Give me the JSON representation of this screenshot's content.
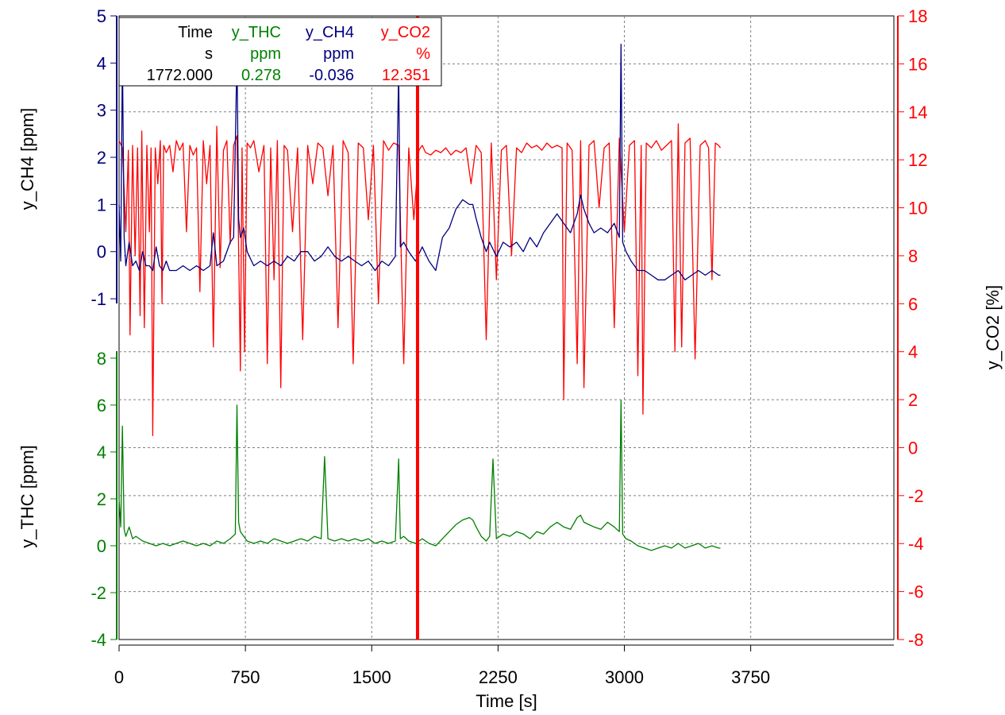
{
  "colors": {
    "ch4": "#000080",
    "thc": "#008000",
    "co2": "#ff0000",
    "grid": "#808080",
    "axis": "#000000",
    "cursor": "#ff0000"
  },
  "chart_data": {
    "type": "line",
    "x_axis": {
      "label": "Time [s]",
      "range": [
        0,
        4600
      ],
      "ticks": [
        0,
        750,
        1500,
        2250,
        3000,
        3750
      ]
    },
    "y_axes": {
      "ch4": {
        "label": "y_CH4 [ppm]",
        "range": [
          -1.1,
          5
        ],
        "ticks": [
          -1,
          0,
          1,
          2,
          3,
          4,
          5
        ]
      },
      "thc": {
        "label": "y_THC [ppm]",
        "range": [
          -4,
          8.3
        ],
        "ticks": [
          -4,
          -2,
          0,
          2,
          4,
          6,
          8
        ]
      },
      "co2": {
        "label": "y_CO2 [%]",
        "range": [
          -8,
          18
        ],
        "ticks": [
          -8,
          -6,
          -4,
          -2,
          0,
          2,
          4,
          6,
          8,
          10,
          12,
          14,
          16,
          18
        ]
      }
    },
    "grid": true,
    "cursor": {
      "x": 1772
    },
    "legend": {
      "columns": [
        {
          "name": "Time",
          "unit": "s",
          "value": "1772.000",
          "color_key": "axis"
        },
        {
          "name": "y_THC",
          "unit": "ppm",
          "value": "0.278",
          "color_key": "thc"
        },
        {
          "name": "y_CH4",
          "unit": "ppm",
          "value": "-0.036",
          "color_key": "ch4"
        },
        {
          "name": "y_CO2",
          "unit": "%",
          "value": "12.351",
          "color_key": "co2"
        }
      ]
    },
    "series": [
      {
        "name": "y_CO2",
        "axis": "co2",
        "color_key": "co2",
        "x": [
          0,
          20,
          40,
          55,
          65,
          80,
          95,
          110,
          125,
          135,
          150,
          165,
          180,
          190,
          200,
          215,
          230,
          245,
          255,
          265,
          280,
          300,
          320,
          340,
          360,
          380,
          400,
          420,
          440,
          460,
          480,
          500,
          520,
          540,
          560,
          580,
          600,
          620,
          640,
          660,
          680,
          700,
          720,
          730,
          745,
          760,
          780,
          800,
          830,
          860,
          880,
          900,
          920,
          940,
          960,
          980,
          1000,
          1030,
          1060,
          1090,
          1120,
          1150,
          1180,
          1210,
          1240,
          1270,
          1300,
          1330,
          1360,
          1390,
          1420,
          1450,
          1480,
          1510,
          1540,
          1570,
          1600,
          1630,
          1660,
          1690,
          1720,
          1750,
          1780,
          1800,
          1820,
          1850,
          1880,
          1910,
          1940,
          1970,
          2000,
          2030,
          2060,
          2090,
          2120,
          2150,
          2180,
          2210,
          2240,
          2270,
          2300,
          2330,
          2360,
          2390,
          2420,
          2450,
          2480,
          2510,
          2540,
          2570,
          2600,
          2630,
          2640,
          2660,
          2690,
          2720,
          2740,
          2760,
          2790,
          2820,
          2850,
          2880,
          2910,
          2940,
          2970,
          3000,
          3030,
          3060,
          3080,
          3100,
          3110,
          3130,
          3160,
          3190,
          3220,
          3250,
          3280,
          3300,
          3320,
          3340,
          3360,
          3390,
          3420,
          3450,
          3480,
          3500,
          3520,
          3540,
          3560,
          3570
        ],
        "y": [
          12.8,
          12.5,
          9.0,
          12.4,
          4.7,
          12.6,
          8.0,
          12.5,
          5.5,
          13.2,
          5.0,
          12.6,
          9.0,
          12.5,
          0.5,
          12.5,
          11.0,
          12.8,
          6.0,
          12.6,
          12.3,
          12.6,
          11.5,
          12.8,
          12.4,
          12.7,
          9.0,
          12.6,
          12.2,
          12.5,
          6.5,
          12.8,
          11.0,
          12.6,
          4.2,
          13.4,
          7.5,
          12.4,
          12.8,
          8.5,
          12.6,
          13.0,
          3.2,
          12.5,
          4.0,
          12.7,
          12.5,
          12.8,
          11.5,
          12.6,
          3.5,
          12.5,
          7.0,
          12.8,
          2.5,
          12.6,
          12.4,
          9.0,
          12.5,
          4.5,
          12.6,
          11.0,
          12.7,
          12.5,
          10.5,
          12.6,
          5.0,
          12.8,
          12.3,
          3.5,
          12.7,
          12.5,
          9.5,
          12.6,
          6.0,
          12.8,
          12.4,
          12.7,
          12.6,
          3.5,
          12.5,
          9.5,
          12.4,
          12.6,
          12.3,
          12.2,
          12.4,
          12.3,
          12.5,
          12.2,
          12.4,
          12.3,
          12.5,
          11.0,
          12.6,
          12.3,
          4.5,
          12.7,
          7.0,
          12.4,
          12.6,
          8.0,
          12.5,
          12.3,
          12.7,
          12.5,
          12.6,
          12.4,
          12.7,
          12.5,
          12.6,
          12.5,
          2.0,
          12.7,
          12.4,
          3.5,
          12.8,
          2.5,
          12.6,
          12.8,
          10.0,
          12.5,
          12.7,
          5.0,
          12.9,
          9.0,
          12.6,
          12.8,
          3.0,
          12.6,
          1.4,
          12.7,
          12.5,
          12.8,
          12.4,
          12.6,
          12.8,
          4.0,
          13.5,
          4.2,
          12.7,
          12.9,
          3.7,
          12.6,
          12.8,
          12.5,
          7.0,
          12.7,
          12.6,
          12.5
        ]
      },
      {
        "name": "y_CH4",
        "axis": "ch4",
        "color_key": "ch4",
        "x": [
          0,
          10,
          20,
          30,
          40,
          60,
          80,
          100,
          120,
          140,
          160,
          180,
          200,
          220,
          240,
          260,
          280,
          300,
          340,
          380,
          420,
          460,
          500,
          540,
          560,
          580,
          620,
          660,
          680,
          700,
          710,
          720,
          740,
          760,
          800,
          840,
          880,
          920,
          960,
          1000,
          1040,
          1080,
          1120,
          1160,
          1200,
          1240,
          1280,
          1320,
          1360,
          1400,
          1440,
          1480,
          1520,
          1560,
          1600,
          1640,
          1660,
          1670,
          1690,
          1720,
          1760,
          1800,
          1840,
          1880,
          1920,
          1960,
          2000,
          2040,
          2080,
          2100,
          2120,
          2150,
          2180,
          2200,
          2240,
          2280,
          2320,
          2360,
          2400,
          2440,
          2480,
          2520,
          2560,
          2600,
          2640,
          2680,
          2720,
          2740,
          2760,
          2790,
          2820,
          2860,
          2900,
          2940,
          2970,
          2980,
          2990,
          3010,
          3040,
          3080,
          3120,
          3160,
          3200,
          3240,
          3280,
          3320,
          3360,
          3400,
          3440,
          3480,
          3520,
          3560,
          3570
        ],
        "y": [
          1.0,
          -0.2,
          4.2,
          0.3,
          -0.3,
          0.2,
          -0.3,
          -0.2,
          -0.4,
          0.0,
          -0.3,
          -0.3,
          -0.4,
          0.1,
          -0.3,
          -0.4,
          -0.2,
          -0.4,
          -0.4,
          -0.3,
          -0.4,
          -0.3,
          -0.4,
          -0.3,
          0.4,
          -0.3,
          -0.2,
          0.2,
          0.3,
          4.2,
          0.7,
          0.3,
          0.5,
          0.0,
          -0.3,
          -0.2,
          -0.3,
          -0.2,
          -0.3,
          -0.1,
          -0.2,
          0.0,
          0.0,
          -0.2,
          -0.1,
          0.1,
          -0.1,
          -0.2,
          -0.1,
          -0.2,
          -0.3,
          -0.2,
          -0.4,
          -0.2,
          -0.3,
          -0.1,
          3.8,
          0.1,
          0.2,
          0.0,
          -0.2,
          0.1,
          -0.2,
          -0.4,
          0.3,
          0.5,
          0.9,
          1.1,
          1.0,
          1.0,
          0.7,
          0.3,
          0.0,
          0.2,
          -0.1,
          0.2,
          0.1,
          0.2,
          0.0,
          0.3,
          0.1,
          0.4,
          0.6,
          0.8,
          0.6,
          0.4,
          0.8,
          1.2,
          0.9,
          0.6,
          0.4,
          0.5,
          0.4,
          0.6,
          0.3,
          4.4,
          0.2,
          0.0,
          -0.2,
          -0.4,
          -0.4,
          -0.5,
          -0.6,
          -0.6,
          -0.5,
          -0.4,
          -0.6,
          -0.5,
          -0.4,
          -0.5,
          -0.4,
          -0.5,
          -0.5
        ]
      },
      {
        "name": "y_THC",
        "axis": "thc",
        "color_key": "thc",
        "x": [
          0,
          10,
          20,
          30,
          40,
          60,
          80,
          100,
          140,
          180,
          220,
          260,
          300,
          340,
          380,
          420,
          460,
          500,
          540,
          580,
          620,
          660,
          690,
          700,
          710,
          720,
          740,
          760,
          800,
          840,
          880,
          920,
          960,
          1000,
          1040,
          1080,
          1120,
          1160,
          1200,
          1220,
          1240,
          1280,
          1320,
          1360,
          1400,
          1440,
          1480,
          1520,
          1560,
          1600,
          1640,
          1660,
          1670,
          1690,
          1720,
          1760,
          1800,
          1840,
          1880,
          1920,
          1960,
          2000,
          2040,
          2080,
          2100,
          2120,
          2150,
          2180,
          2200,
          2220,
          2240,
          2280,
          2320,
          2360,
          2400,
          2440,
          2480,
          2520,
          2560,
          2600,
          2640,
          2680,
          2720,
          2740,
          2760,
          2790,
          2820,
          2860,
          2900,
          2940,
          2970,
          2980,
          2990,
          3010,
          3040,
          3080,
          3120,
          3160,
          3200,
          3240,
          3280,
          3320,
          3360,
          3400,
          3440,
          3480,
          3520,
          3560,
          3570
        ],
        "y": [
          2.0,
          0.8,
          5.1,
          0.7,
          0.4,
          0.8,
          0.3,
          0.4,
          0.2,
          0.1,
          0.0,
          0.1,
          0.0,
          0.1,
          0.2,
          0.1,
          0.0,
          0.1,
          0.0,
          0.2,
          0.1,
          0.3,
          0.5,
          6.0,
          1.0,
          0.6,
          0.4,
          0.2,
          0.1,
          0.2,
          0.1,
          0.3,
          0.2,
          0.1,
          0.2,
          0.3,
          0.2,
          0.4,
          0.3,
          3.8,
          0.3,
          0.2,
          0.3,
          0.2,
          0.3,
          0.2,
          0.3,
          0.1,
          0.2,
          0.1,
          0.2,
          3.7,
          0.3,
          0.4,
          0.2,
          0.1,
          0.3,
          0.1,
          0.0,
          0.3,
          0.6,
          0.9,
          1.1,
          1.2,
          1.1,
          0.8,
          0.4,
          0.2,
          0.4,
          3.7,
          0.3,
          0.5,
          0.4,
          0.6,
          0.5,
          0.3,
          0.6,
          0.5,
          0.8,
          1.0,
          0.8,
          0.7,
          1.2,
          1.3,
          1.0,
          0.9,
          0.8,
          0.7,
          1.0,
          0.8,
          0.6,
          6.2,
          0.5,
          0.3,
          0.2,
          0.0,
          -0.1,
          -0.2,
          -0.1,
          0.0,
          -0.1,
          0.1,
          -0.1,
          0.0,
          0.1,
          -0.1,
          0.0,
          -0.1,
          -0.1
        ]
      }
    ]
  }
}
